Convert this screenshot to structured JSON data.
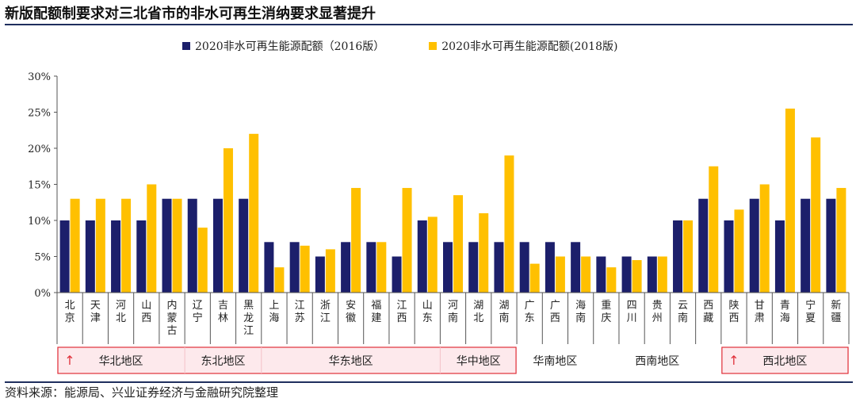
{
  "title": "新版配额制要求对三北省市的非水可再生消纳要求显著提升",
  "source": "资料来源：能源局、兴业证券经济与金融研究院整理",
  "colors": {
    "series2016": "#1c1f6b",
    "series2018": "#ffc000",
    "highlight": "#e0303a",
    "highlight_fill": "#fde9ec",
    "axis": "#555555"
  },
  "chart_data": {
    "type": "bar",
    "title": "新版配额制要求对三北省市的非水可再生消纳要求显著提升",
    "ylabel": "",
    "ylim": [
      0,
      30
    ],
    "yticks": [
      "0%",
      "5%",
      "10%",
      "15%",
      "20%",
      "25%",
      "30%"
    ],
    "legend_position": "top-center",
    "categories": [
      "北京",
      "天津",
      "河北",
      "山西",
      "内蒙古",
      "辽宁",
      "吉林",
      "黑龙江",
      "上海",
      "江苏",
      "浙江",
      "安徽",
      "福建",
      "江西",
      "山东",
      "河南",
      "湖北",
      "湖南",
      "广东",
      "广西",
      "海南",
      "重庆",
      "四川",
      "贵州",
      "云南",
      "西藏",
      "陕西",
      "甘肃",
      "青海",
      "宁夏",
      "新疆"
    ],
    "series": [
      {
        "name": "2020非水可再生能源配额（2016版）",
        "values": [
          10,
          10,
          10,
          10,
          13,
          13,
          13,
          13,
          7,
          7,
          5,
          7,
          7,
          5,
          10,
          7,
          7,
          7,
          7,
          7,
          7,
          5,
          5,
          5,
          10,
          13,
          10,
          13,
          10,
          13,
          13
        ]
      },
      {
        "name": "2020非水可再生能源配额(2018版)",
        "values": [
          13,
          13,
          13,
          15,
          13,
          9,
          20,
          22,
          3.5,
          6.5,
          6,
          14.5,
          7,
          14.5,
          10.5,
          13.5,
          11,
          19,
          4,
          5,
          5,
          3.5,
          4.5,
          5,
          10,
          17.5,
          11.5,
          15,
          25.5,
          21.5,
          14.5
        ]
      }
    ],
    "regions": [
      {
        "name": "华北地区",
        "start": 0,
        "end": 4,
        "highlight": true,
        "arrow": "↑"
      },
      {
        "name": "东北地区",
        "start": 5,
        "end": 7,
        "highlight": true,
        "arrow": ""
      },
      {
        "name": "华东地区",
        "start": 8,
        "end": 14,
        "highlight": true,
        "arrow": ""
      },
      {
        "name": "华中地区",
        "start": 15,
        "end": 17,
        "highlight": true,
        "arrow": ""
      },
      {
        "name": "华南地区",
        "start": 18,
        "end": 20,
        "highlight": false,
        "arrow": ""
      },
      {
        "name": "西南地区",
        "start": 21,
        "end": 25,
        "highlight": false,
        "arrow": ""
      },
      {
        "name": "西北地区",
        "start": 26,
        "end": 30,
        "highlight": true,
        "arrow": "↑"
      }
    ]
  }
}
